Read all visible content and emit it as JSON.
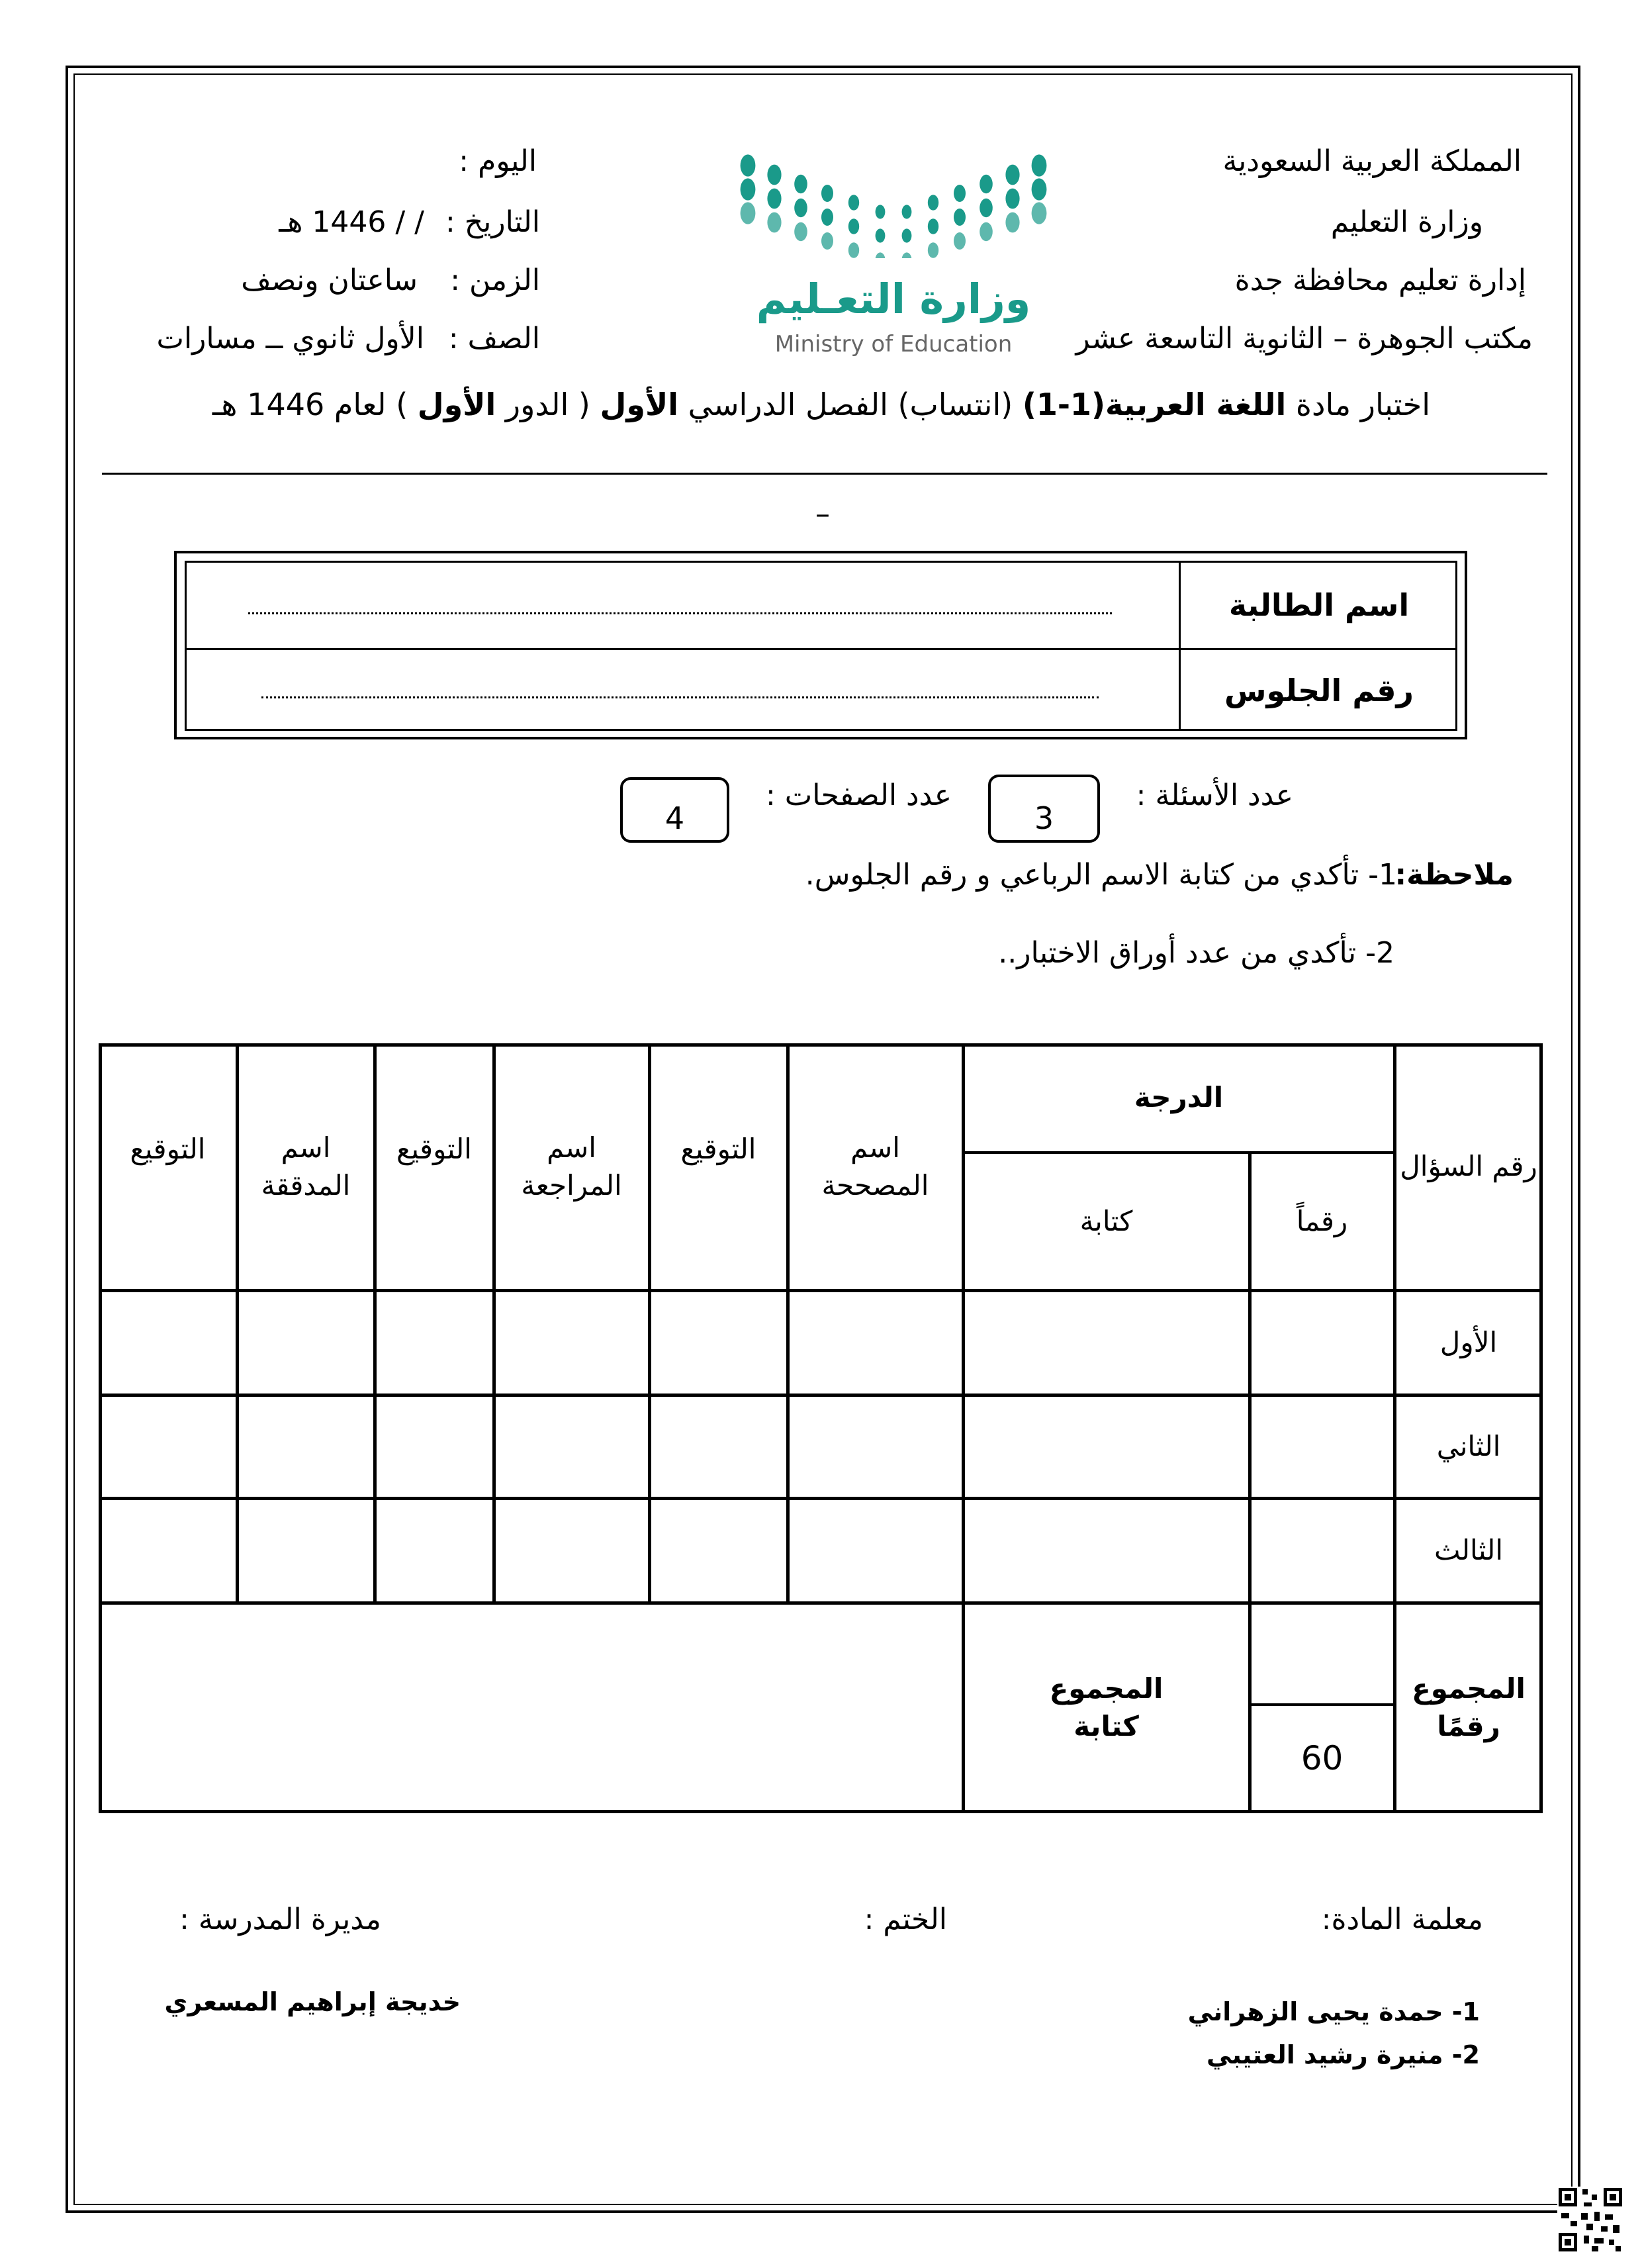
{
  "header_right": [
    "المملكة العربية السعودية",
    "وزارة التعليم",
    "إدارة تعليم محافظة جدة",
    "مكتب الجوهرة – الثانوية التاسعة عشر"
  ],
  "header_left": {
    "day_label": "اليوم :",
    "date_label": "التاريخ :",
    "date_value": "/   /  1446 هـ",
    "time_label": "الزمن :",
    "time_value": "ساعتان ونصف",
    "grade_label": "الصف :",
    "grade_value": "الأول ثانوي ــ مسارات"
  },
  "logo": {
    "arabic": "وزارة التعـليم",
    "english": "Ministry of Education",
    "color": "#1a9a8a"
  },
  "title": {
    "p1": "اختبار مادة ",
    "p2": "اللغة العربية(1-1)",
    "p3": " (انتساب) الفصل الدراسي ",
    "p4": "الأول",
    "p5": " ( الدور ",
    "p6": "الأول",
    "p7": " ) لعام  1446 هـ"
  },
  "dash": "–",
  "student": {
    "name_label": "اسم الطالبة",
    "seat_label": "رقم الجلوس"
  },
  "counts": {
    "questions_label": "عدد الأسئلة :",
    "questions_value": "3",
    "pages_label": "عدد الصفحات :",
    "pages_value": "4"
  },
  "notes": {
    "label": "ملاحظة:",
    "item1": "1-  تأكدي من كتابة الاسم الرباعي و رقم الجلوس.",
    "item2": "2- تأكدي من عدد أوراق الاختبار.."
  },
  "grades_table": {
    "headers": {
      "question_no": "رقم السؤال",
      "grade": "الدرجة",
      "digits": "رقماً",
      "words": "كتابة",
      "corrector_name": "اسم المصححة",
      "signature": "التوقيع",
      "reviewer_name": "اسم المراجعة",
      "auditor_name": "اسم المدققة"
    },
    "rows": [
      "الأول",
      "الثاني",
      "الثالث"
    ],
    "total_digits_label": "المجموع رقمًا",
    "total_digits_value": "60",
    "total_words_label": "المجموع كتابة"
  },
  "footer": {
    "teacher_label": "معلمة المادة:",
    "stamp_label": "الختم :",
    "principal_label": "مديرة المدرسة :",
    "teachers": [
      "1-   حمدة يحيى الزهراني",
      "2-   منيرة رشيد العتيبي"
    ],
    "principal_name": "خديجة إبراهيم المسعري"
  }
}
